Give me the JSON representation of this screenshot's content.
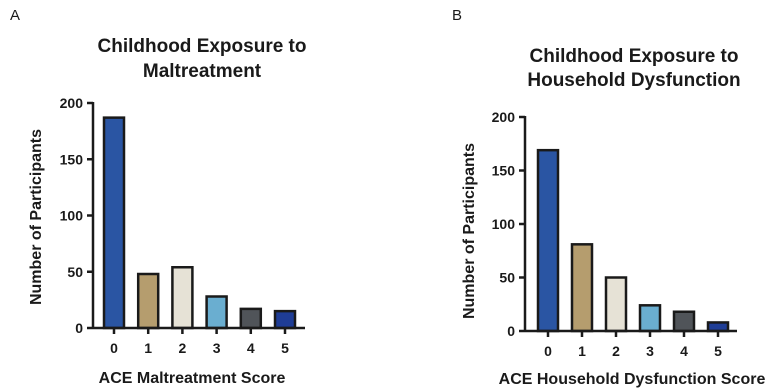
{
  "chart_data": [
    {
      "type": "bar",
      "panel_label": "A",
      "title_lines": [
        "Childhood Exposure to",
        "Maltreatment"
      ],
      "xlabel": "ACE Maltreatment  Score",
      "ylabel": "Number of Participants",
      "categories": [
        "0",
        "1",
        "2",
        "3",
        "4",
        "5"
      ],
      "values": [
        187,
        48,
        54,
        28,
        17,
        15
      ],
      "colors": [
        "#2a55a3",
        "#b59d6e",
        "#e6e2d6",
        "#6aaed0",
        "#505459",
        "#1f3d96"
      ],
      "ylim": [
        0,
        200
      ],
      "yticks": [
        "0",
        "50",
        "100",
        "150",
        "200"
      ],
      "grid": false
    },
    {
      "type": "bar",
      "panel_label": "B",
      "title_lines": [
        "Childhood Exposure to",
        "Household Dysfunction"
      ],
      "xlabel": "ACE Household Dysfunction Score",
      "ylabel": "Number of Participants",
      "categories": [
        "0",
        "1",
        "2",
        "3",
        "4",
        "5"
      ],
      "values": [
        169,
        81,
        50,
        24,
        18,
        8
      ],
      "colors": [
        "#2a55a3",
        "#b59d6e",
        "#e6e2d6",
        "#6aaed0",
        "#505459",
        "#1f3d96"
      ],
      "ylim": [
        0,
        200
      ],
      "yticks": [
        "0",
        "50",
        "100",
        "150",
        "200"
      ],
      "grid": false
    }
  ]
}
